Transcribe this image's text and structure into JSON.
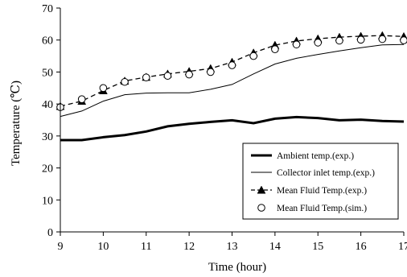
{
  "chart_data": {
    "type": "line",
    "title": "",
    "xlabel": "Time (hour)",
    "ylabel": "Temperature (℃)",
    "xlim": [
      9,
      17
    ],
    "ylim": [
      0,
      70
    ],
    "xticks": [
      "9",
      "10",
      "11",
      "12",
      "13",
      "14",
      "15",
      "16",
      "17"
    ],
    "yticks": [
      "0",
      "10",
      "20",
      "30",
      "40",
      "50",
      "60",
      "70"
    ],
    "grid": false,
    "legend_position": "bottom-right",
    "series": [
      {
        "name": "Ambient temp.(exp.)",
        "style": "thick-solid",
        "x": [
          9,
          9.5,
          10,
          10.5,
          11,
          11.5,
          12,
          12.5,
          13,
          13.5,
          14,
          14.5,
          15,
          15.5,
          16,
          16.5,
          17
        ],
        "y": [
          28.7,
          28.7,
          29.6,
          30.3,
          31.4,
          33.0,
          33.8,
          34.4,
          34.9,
          34.0,
          35.4,
          35.9,
          35.6,
          34.9,
          35.1,
          34.7,
          34.5
        ]
      },
      {
        "name": "Collector inlet temp.(exp.)",
        "style": "thin-solid",
        "x": [
          9,
          9.5,
          10,
          10.5,
          11,
          11.5,
          12,
          12.5,
          13,
          13.5,
          14,
          14.5,
          15,
          15.5,
          16,
          16.5,
          17
        ],
        "y": [
          36.1,
          37.8,
          40.9,
          42.9,
          43.4,
          43.5,
          43.5,
          44.6,
          46.1,
          49.4,
          52.5,
          54.3,
          55.5,
          56.6,
          57.6,
          58.5,
          58.6
        ]
      },
      {
        "name": "Mean Fluid Temp.(exp.)",
        "style": "dashed-triangle",
        "x": [
          9,
          9.5,
          10,
          10.5,
          11,
          11.5,
          12,
          12.5,
          13,
          13.5,
          14,
          14.5,
          15,
          15.5,
          16,
          16.5,
          17
        ],
        "y": [
          39.3,
          40.9,
          44.2,
          47.2,
          48.4,
          49.4,
          50.2,
          51.1,
          53.1,
          56.0,
          58.4,
          59.7,
          60.4,
          60.9,
          61.2,
          61.4,
          61.1
        ]
      },
      {
        "name": "Mean Fluid Temp.(sim.)",
        "style": "open-circle",
        "x": [
          9,
          9.5,
          10,
          10.5,
          11,
          11.5,
          12,
          12.5,
          13,
          13.5,
          14,
          14.5,
          15,
          15.5,
          16,
          16.5,
          17
        ],
        "y": [
          39.0,
          41.5,
          45.0,
          46.9,
          48.3,
          48.8,
          49.2,
          50.0,
          52.1,
          55.0,
          57.1,
          58.6,
          59.2,
          59.8,
          60.1,
          60.3,
          59.9
        ]
      }
    ]
  }
}
